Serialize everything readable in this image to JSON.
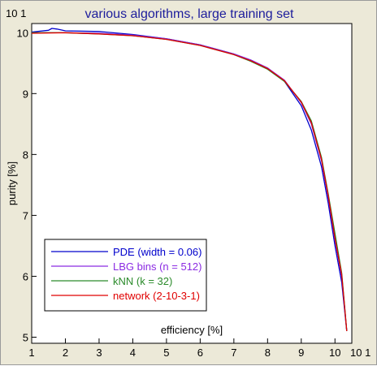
{
  "chart_data": {
    "type": "line",
    "title": "various algorithms, large training set",
    "xlabel": "efficiency [%]",
    "ylabel": "purity [%]",
    "x_multiplier_label": "10 1",
    "y_multiplier_label": "10 1",
    "xlim": [
      1,
      10.5
    ],
    "ylim": [
      4.9,
      10.15
    ],
    "x_ticks": [
      "1",
      "2",
      "3",
      "4",
      "5",
      "6",
      "7",
      "8",
      "9",
      "10"
    ],
    "y_ticks": [
      "5",
      "6",
      "7",
      "8",
      "9",
      "10"
    ],
    "legend_position": "bottom-left",
    "series": [
      {
        "name": "PDE (width = 0.06)",
        "color": "#0000cc",
        "x": [
          1.0,
          1.5,
          1.6,
          1.75,
          2.0,
          3.0,
          4.0,
          5.0,
          6.0,
          7.0,
          7.5,
          8.0,
          8.5,
          9.0,
          9.3,
          9.6,
          9.8,
          10.0,
          10.2,
          10.35
        ],
        "y": [
          10.01,
          10.04,
          10.07,
          10.06,
          10.03,
          10.02,
          9.97,
          9.9,
          9.8,
          9.65,
          9.55,
          9.42,
          9.2,
          8.8,
          8.4,
          7.8,
          7.2,
          6.5,
          5.9,
          5.1
        ]
      },
      {
        "name": "LBG bins (n = 512)",
        "color": "#8b2be2",
        "x": [
          1.0,
          2.0,
          3.0,
          4.0,
          5.0,
          6.0,
          7.0,
          7.5,
          8.0,
          8.5,
          9.0,
          9.3,
          9.6,
          9.8,
          10.0,
          10.2,
          10.35
        ],
        "y": [
          10.0,
          10.0,
          9.99,
          9.96,
          9.9,
          9.8,
          9.65,
          9.55,
          9.42,
          9.22,
          8.85,
          8.5,
          7.9,
          7.3,
          6.6,
          6.0,
          5.1
        ]
      },
      {
        "name": "kNN (k = 32)",
        "color": "#2a8a2a",
        "x": [
          1.0,
          2.0,
          3.0,
          4.0,
          5.0,
          6.0,
          7.0,
          7.5,
          8.0,
          8.5,
          9.0,
          9.3,
          9.6,
          9.8,
          10.0,
          10.2,
          10.35
        ],
        "y": [
          10.0,
          10.0,
          9.98,
          9.95,
          9.89,
          9.79,
          9.64,
          9.53,
          9.4,
          9.2,
          8.87,
          8.55,
          7.95,
          7.35,
          6.7,
          6.05,
          5.1
        ]
      },
      {
        "name": "network (2-10-3-1)",
        "color": "#e00000",
        "x": [
          1.0,
          2.0,
          3.0,
          4.0,
          5.0,
          6.0,
          7.0,
          7.5,
          8.0,
          8.5,
          9.0,
          9.3,
          9.6,
          9.8,
          10.0,
          10.2,
          10.35
        ],
        "y": [
          9.99,
          10.0,
          9.98,
          9.95,
          9.89,
          9.79,
          9.64,
          9.54,
          9.41,
          9.21,
          8.86,
          8.52,
          7.92,
          7.32,
          6.62,
          6.02,
          5.1
        ]
      }
    ]
  }
}
